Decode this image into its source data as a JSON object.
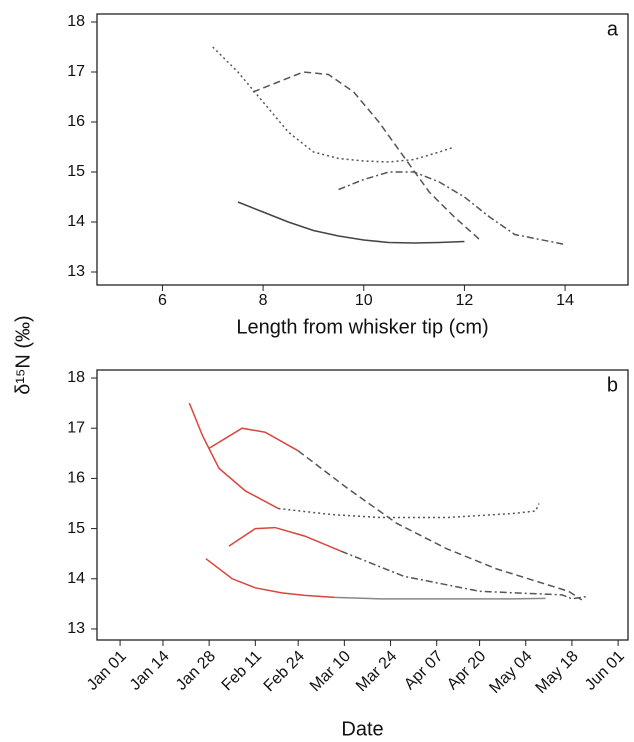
{
  "ylabel": "δ¹⁵N (‰)",
  "chart_data": [
    {
      "type": "line",
      "label": "a",
      "xlabel": "Length from whisker tip (cm)",
      "xlim": [
        4.7,
        15.25
      ],
      "xticks": [
        6,
        8,
        10,
        12,
        14
      ],
      "ylim": [
        12.74,
        18.16
      ],
      "yticks": [
        13,
        14,
        15,
        16,
        17,
        18
      ],
      "series": [
        {
          "color": "#444444",
          "dash": "solid",
          "x": [
            7.5,
            8,
            8.5,
            9,
            9.5,
            10,
            10.5,
            11,
            11.5,
            12
          ],
          "values": [
            14.4,
            14.2,
            14.0,
            13.83,
            13.72,
            13.64,
            13.59,
            13.58,
            13.59,
            13.61
          ]
        },
        {
          "color": "#555555",
          "dash": "dotted",
          "x": [
            7,
            7.5,
            8,
            8.5,
            9,
            9.5,
            10,
            10.5,
            11,
            11.5,
            11.8
          ],
          "values": [
            17.5,
            17.0,
            16.4,
            15.8,
            15.4,
            15.27,
            15.22,
            15.2,
            15.25,
            15.4,
            15.5
          ]
        },
        {
          "color": "#555555",
          "dash": "dashed",
          "x": [
            7.8,
            8.3,
            8.8,
            9.3,
            9.8,
            10.3,
            10.8,
            11.3,
            11.8,
            12.3
          ],
          "values": [
            16.6,
            16.8,
            17.0,
            16.95,
            16.6,
            16.0,
            15.3,
            14.6,
            14.1,
            13.65
          ]
        },
        {
          "color": "#555555",
          "dash": "dashdot",
          "x": [
            9.5,
            10,
            10.5,
            11,
            11.5,
            12,
            12.5,
            13,
            13.5,
            14
          ],
          "values": [
            14.65,
            14.85,
            15.0,
            15.0,
            14.8,
            14.5,
            14.1,
            13.75,
            13.65,
            13.55
          ]
        }
      ]
    },
    {
      "type": "line",
      "label": "b",
      "xlabel": "Date",
      "xlim": [
        -6,
        155
      ],
      "xticks": [
        {
          "value": 1,
          "label": "Jan 01"
        },
        {
          "value": 14,
          "label": "Jan 14"
        },
        {
          "value": 28,
          "label": "Jan 28"
        },
        {
          "value": 42,
          "label": "Feb 11"
        },
        {
          "value": 55,
          "label": "Feb 24"
        },
        {
          "value": 69,
          "label": "Mar 10"
        },
        {
          "value": 83,
          "label": "Mar 24"
        },
        {
          "value": 97,
          "label": "Apr 07"
        },
        {
          "value": 110,
          "label": "Apr 20"
        },
        {
          "value": 124,
          "label": "May 04"
        },
        {
          "value": 138,
          "label": "May 18"
        },
        {
          "value": 152,
          "label": "Jun 01"
        }
      ],
      "ylim": [
        12.78,
        18.16
      ],
      "yticks": [
        13,
        14,
        15,
        16,
        17,
        18
      ],
      "series": [
        {
          "color": "#d9453a",
          "dash": "solid",
          "x": [
            27,
            35,
            42,
            50,
            57,
            66
          ],
          "values": [
            14.4,
            14.0,
            13.82,
            13.72,
            13.67,
            13.63
          ]
        },
        {
          "color": "#888888",
          "dash": "solid",
          "x": [
            66,
            80,
            100,
            120,
            130
          ],
          "values": [
            13.63,
            13.6,
            13.6,
            13.6,
            13.61
          ]
        },
        {
          "color": "#d9453a",
          "dash": "solid",
          "x": [
            22,
            26,
            31,
            39,
            49
          ],
          "values": [
            17.5,
            16.85,
            16.2,
            15.75,
            15.4
          ]
        },
        {
          "color": "#555555",
          "dash": "dotted",
          "x": [
            49,
            65,
            80,
            100,
            120,
            127,
            128
          ],
          "values": [
            15.4,
            15.28,
            15.22,
            15.22,
            15.3,
            15.35,
            15.5
          ]
        },
        {
          "color": "#d9453a",
          "dash": "solid",
          "x": [
            28,
            38,
            45,
            55
          ],
          "values": [
            16.6,
            17.0,
            16.92,
            16.55
          ]
        },
        {
          "color": "#555555",
          "dash": "dashed",
          "x": [
            55,
            70,
            85,
            100,
            115,
            137,
            141
          ],
          "values": [
            16.55,
            15.8,
            15.1,
            14.6,
            14.2,
            13.75,
            13.58
          ]
        },
        {
          "color": "#d9453a",
          "dash": "solid",
          "x": [
            34,
            42,
            48,
            57,
            68
          ],
          "values": [
            14.65,
            15.0,
            15.02,
            14.85,
            14.55
          ]
        },
        {
          "color": "#555555",
          "dash": "dashdot",
          "x": [
            68,
            87,
            110,
            135,
            138,
            143
          ],
          "values": [
            14.55,
            14.05,
            13.75,
            13.68,
            13.6,
            13.65
          ]
        }
      ]
    }
  ]
}
